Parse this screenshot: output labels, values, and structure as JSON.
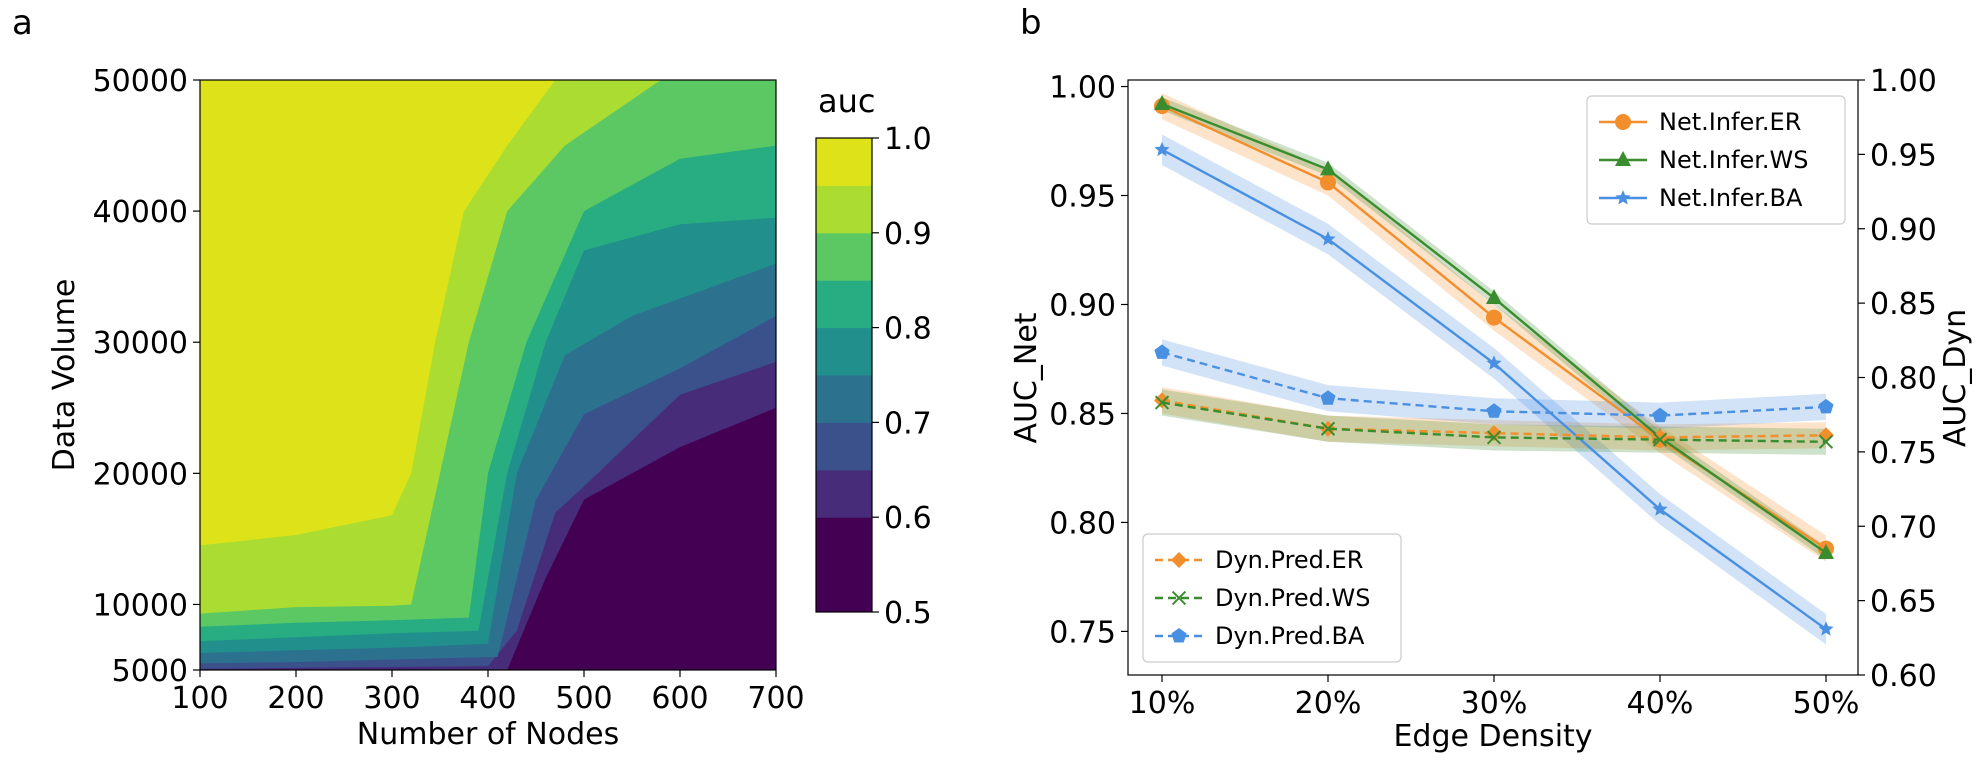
{
  "chart_data": [
    {
      "type": "heatmap",
      "panel_label": "a",
      "subtype": "filled-contour",
      "xlabel": "Number of Nodes",
      "ylabel": "Data Volume",
      "xlim": [
        100,
        700
      ],
      "ylim": [
        5000,
        50000
      ],
      "x_ticks": [
        100,
        200,
        300,
        400,
        500,
        600,
        700
      ],
      "y_ticks": [
        5000,
        10000,
        20000,
        30000,
        40000,
        50000
      ],
      "colorbar": {
        "title": "auc",
        "min": 0.5,
        "max": 1.0,
        "ticks": [
          "0.5",
          "0.6",
          "0.7",
          "0.8",
          "0.9",
          "1.0"
        ],
        "levels": [
          0.5,
          0.55,
          0.6,
          0.65,
          0.7,
          0.75,
          0.8,
          0.85,
          0.9,
          0.95,
          1.0
        ],
        "colors": [
          "#440154",
          "#472c7a",
          "#3b518b",
          "#2c718e",
          "#21908d",
          "#27ad81",
          "#5cc863",
          "#aadc32",
          "#dde318"
        ]
      },
      "contour_boundaries": [
        {
          "level": 0.95,
          "points": [
            [
              100,
              14500
            ],
            [
              200,
              15300
            ],
            [
              300,
              16800
            ],
            [
              320,
              20000
            ],
            [
              345,
              30000
            ],
            [
              375,
              40000
            ],
            [
              420,
              45000
            ],
            [
              470,
              50000
            ]
          ]
        },
        {
          "level": 0.9,
          "points": [
            [
              100,
              9300
            ],
            [
              200,
              9800
            ],
            [
              300,
              9900
            ],
            [
              320,
              10000
            ],
            [
              350,
              20000
            ],
            [
              380,
              30000
            ],
            [
              420,
              40000
            ],
            [
              480,
              45000
            ],
            [
              580,
              50000
            ]
          ]
        },
        {
          "level": 0.85,
          "points": [
            [
              100,
              8300
            ],
            [
              200,
              8600
            ],
            [
              300,
              8800
            ],
            [
              380,
              9000
            ],
            [
              400,
              20000
            ],
            [
              440,
              30000
            ],
            [
              500,
              40000
            ],
            [
              600,
              44000
            ],
            [
              700,
              45000
            ]
          ]
        },
        {
          "level": 0.8,
          "points": [
            [
              100,
              7200
            ],
            [
              200,
              7500
            ],
            [
              300,
              7800
            ],
            [
              390,
              8000
            ],
            [
              420,
              20000
            ],
            [
              460,
              30000
            ],
            [
              500,
              37000
            ],
            [
              600,
              39000
            ],
            [
              700,
              39500
            ]
          ]
        },
        {
          "level": 0.75,
          "points": [
            [
              100,
              6300
            ],
            [
              200,
              6500
            ],
            [
              300,
              6700
            ],
            [
              400,
              7000
            ],
            [
              430,
              20000
            ],
            [
              480,
              29000
            ],
            [
              550,
              32000
            ],
            [
              700,
              36000
            ]
          ]
        },
        {
          "level": 0.7,
          "points": [
            [
              100,
              5500
            ],
            [
              200,
              5600
            ],
            [
              300,
              5800
            ],
            [
              410,
              6000
            ],
            [
              450,
              18000
            ],
            [
              500,
              24500
            ],
            [
              600,
              28000
            ],
            [
              700,
              32000
            ]
          ]
        },
        {
          "level": 0.65,
          "points": [
            [
              100,
              5100
            ],
            [
              400,
              5300
            ],
            [
              430,
              8000
            ],
            [
              470,
              17000
            ],
            [
              500,
              19000
            ],
            [
              600,
              26000
            ],
            [
              700,
              28500
            ]
          ]
        },
        {
          "level": 0.6,
          "points": [
            [
              420,
              5000
            ],
            [
              460,
              12000
            ],
            [
              500,
              18000
            ],
            [
              600,
              22000
            ],
            [
              700,
              25000
            ]
          ]
        },
        {
          "level": 0.55,
          "points": [
            [
              450,
              5000
            ],
            [
              490,
              14000
            ],
            [
              520,
              16000
            ],
            [
              600,
              19500
            ],
            [
              700,
              21000
            ]
          ]
        },
        {
          "level": 0.5,
          "points": [
            [
              490,
              5000
            ],
            [
              500,
              10000
            ],
            [
              600,
              14000
            ],
            [
              700,
              15000
            ]
          ]
        }
      ]
    },
    {
      "type": "line",
      "panel_label": "b",
      "xlabel": "Edge Density",
      "ylabel": "AUC_Net",
      "y2label": "AUC_Dyn",
      "categories": [
        "10%",
        "20%",
        "30%",
        "40%",
        "50%"
      ],
      "ylim": [
        0.73,
        1.003
      ],
      "y_ticks": [
        "0.75",
        "0.80",
        "0.85",
        "0.90",
        "0.95",
        "1.00"
      ],
      "y2lim": [
        0.6,
        1.0
      ],
      "y2_ticks": [
        "0.60",
        "0.65",
        "0.70",
        "0.75",
        "0.80",
        "0.85",
        "0.90",
        "0.95",
        "1.00"
      ],
      "series": [
        {
          "name": "Net.Infer.ER",
          "axis": "left",
          "color": "#f28e2b",
          "marker": "circle",
          "dash": "solid",
          "values": [
            0.991,
            0.956,
            0.894,
            0.838,
            0.788
          ],
          "band": 0.006
        },
        {
          "name": "Net.Infer.WS",
          "axis": "left",
          "color": "#3a8d2e",
          "marker": "triangle",
          "dash": "solid",
          "values": [
            0.992,
            0.962,
            0.903,
            0.839,
            0.786
          ],
          "band": 0.003
        },
        {
          "name": "Net.Infer.BA",
          "axis": "left",
          "color": "#4a90e2",
          "marker": "star",
          "dash": "solid",
          "values": [
            0.971,
            0.93,
            0.873,
            0.806,
            0.751
          ],
          "band": 0.007
        },
        {
          "name": "Dyn.Pred.ER",
          "axis": "left",
          "color": "#f28e2b",
          "marker": "diamond",
          "dash": "dashed",
          "values": [
            0.856,
            0.843,
            0.841,
            0.839,
            0.84
          ],
          "band": 0.006
        },
        {
          "name": "Dyn.Pred.WS",
          "axis": "left",
          "color": "#3a8d2e",
          "marker": "x",
          "dash": "dashed",
          "values": [
            0.855,
            0.843,
            0.839,
            0.838,
            0.837
          ],
          "band": 0.006
        },
        {
          "name": "Dyn.Pred.BA",
          "axis": "left",
          "color": "#4a90e2",
          "marker": "pentagon",
          "dash": "dashed",
          "values": [
            0.878,
            0.857,
            0.851,
            0.849,
            0.853
          ],
          "band": 0.006
        }
      ],
      "legends": [
        {
          "position": "top-right",
          "entries": [
            "Net.Infer.ER",
            "Net.Infer.WS",
            "Net.Infer.BA"
          ]
        },
        {
          "position": "bottom-left",
          "entries": [
            "Dyn.Pred.ER",
            "Dyn.Pred.WS",
            "Dyn.Pred.BA"
          ]
        }
      ]
    }
  ]
}
